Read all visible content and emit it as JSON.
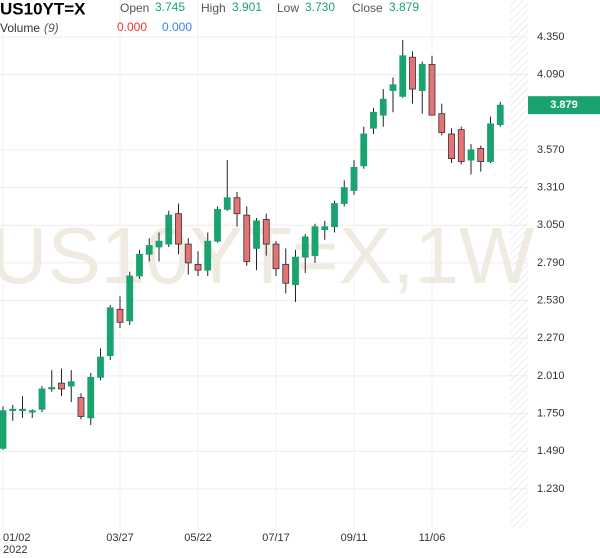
{
  "chart_data": {
    "type": "candlestick",
    "title": "US10YT=X",
    "watermark": "US10YT=X,1W",
    "header": {
      "open_label": "Open",
      "open": "3.745",
      "high_label": "High",
      "high": "3.901",
      "low_label": "Low",
      "low": "3.730",
      "close_label": "Close",
      "close": "3.879",
      "volume_label": "Volume",
      "volume_period": "(9)",
      "volume_down": "0.000",
      "volume_up": "0.000"
    },
    "year_label": "2022",
    "categories": [
      "01/02",
      null,
      null,
      null,
      null,
      null,
      null,
      null,
      null,
      null,
      null,
      null,
      "03/27",
      null,
      null,
      null,
      null,
      null,
      null,
      null,
      "05/22",
      null,
      null,
      null,
      null,
      null,
      null,
      null,
      "07/17",
      null,
      null,
      null,
      null,
      null,
      null,
      null,
      "09/11",
      null,
      null,
      null,
      null,
      null,
      null,
      null,
      "11/06",
      null,
      null,
      null,
      null,
      null,
      null,
      null
    ],
    "open": [
      1.51,
      1.77,
      1.77,
      1.76,
      1.78,
      1.92,
      1.96,
      1.94,
      1.86,
      1.72,
      2.0,
      2.15,
      2.47,
      2.39,
      2.7,
      2.85,
      2.9,
      2.92,
      3.13,
      2.92,
      2.78,
      2.74,
      2.94,
      3.16,
      3.24,
      3.12,
      2.89,
      3.09,
      2.92,
      2.78,
      2.64,
      2.83,
      2.84,
      3.02,
      3.04,
      3.2,
      3.29,
      3.46,
      3.72,
      3.81,
      3.98,
      3.94,
      4.21,
      3.98,
      4.16,
      3.82,
      3.68,
      3.71,
      3.5,
      3.58,
      3.49,
      3.745
    ],
    "high": [
      1.8,
      1.81,
      1.87,
      1.78,
      1.94,
      2.05,
      2.06,
      2.05,
      1.89,
      2.03,
      2.2,
      2.5,
      2.56,
      2.73,
      2.88,
      2.96,
      3.0,
      3.15,
      3.2,
      2.96,
      2.87,
      3.0,
      3.18,
      3.5,
      3.28,
      3.18,
      3.1,
      3.13,
      2.94,
      2.89,
      2.88,
      2.99,
      3.06,
      3.08,
      3.22,
      3.36,
      3.5,
      3.73,
      3.86,
      3.99,
      4.07,
      4.33,
      4.25,
      4.18,
      4.22,
      3.89,
      3.72,
      3.73,
      3.61,
      3.6,
      3.8,
      3.901
    ],
    "low": [
      1.5,
      1.7,
      1.72,
      1.72,
      1.76,
      1.9,
      1.87,
      1.83,
      1.71,
      1.67,
      1.98,
      2.12,
      2.34,
      2.36,
      2.68,
      2.8,
      2.8,
      2.9,
      2.85,
      2.71,
      2.7,
      2.7,
      2.93,
      3.15,
      3.04,
      2.77,
      2.74,
      2.84,
      2.7,
      2.58,
      2.52,
      2.72,
      2.79,
      2.95,
      3.0,
      3.18,
      3.26,
      3.44,
      3.68,
      3.73,
      3.83,
      3.93,
      3.89,
      3.82,
      3.81,
      3.67,
      3.48,
      3.47,
      3.4,
      3.42,
      3.48,
      3.73
    ],
    "close": [
      1.77,
      1.78,
      1.78,
      1.77,
      1.92,
      1.93,
      1.92,
      1.97,
      1.73,
      2.0,
      2.14,
      2.48,
      2.38,
      2.7,
      2.85,
      2.91,
      2.94,
      3.12,
      2.92,
      2.79,
      2.74,
      2.94,
      3.16,
      3.24,
      3.13,
      2.8,
      3.08,
      2.92,
      2.75,
      2.65,
      2.83,
      2.97,
      3.04,
      3.04,
      3.2,
      3.31,
      3.45,
      3.68,
      3.83,
      3.92,
      4.02,
      4.22,
      3.99,
      4.16,
      3.81,
      3.69,
      3.51,
      3.49,
      3.57,
      3.49,
      3.75,
      3.879
    ],
    "up_color": "#1aa36f",
    "down_color": "#e57373",
    "last_price": 3.879,
    "ylim": [
      0.96,
      4.605
    ],
    "yticks": [
      {
        "value": 1.23,
        "label": "1.230"
      },
      {
        "value": 1.49,
        "label": "1.490"
      },
      {
        "value": 1.75,
        "label": "1.750"
      },
      {
        "value": 2.01,
        "label": "2.010"
      },
      {
        "value": 2.27,
        "label": "2.270"
      },
      {
        "value": 2.53,
        "label": "2.530"
      },
      {
        "value": 2.79,
        "label": "2.790"
      },
      {
        "value": 3.05,
        "label": "3.050"
      },
      {
        "value": 3.31,
        "label": "3.310"
      },
      {
        "value": 3.57,
        "label": "3.570"
      },
      {
        "value": 4.09,
        "label": "4.090"
      },
      {
        "value": 4.35,
        "label": "4.350"
      }
    ],
    "grid": true
  }
}
